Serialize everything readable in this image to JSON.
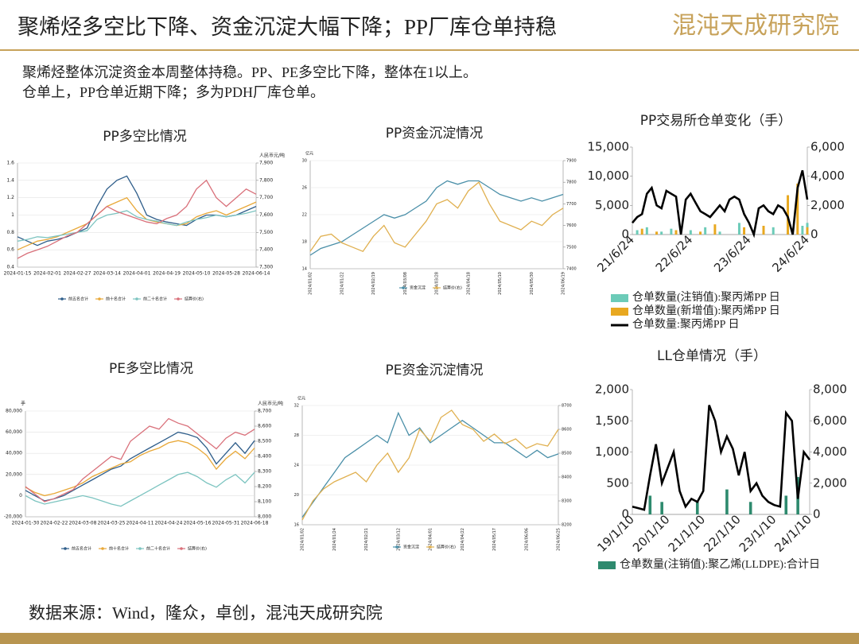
{
  "header": {
    "title": "聚烯烃多空比下降、资金沉淀大幅下降；PP厂库仓单持稳",
    "brand": "混沌天成研究院"
  },
  "summary": [
    "聚烯烃整体沉淀资金本周整体持稳。PP、PE多空比下降，整体在1以上。",
    "仓单上，PP仓单近期下降；多为PDH厂库仓单。"
  ],
  "source": "数据来源：Wind，隆众，卓创，混沌天成研究院",
  "chart_data": [
    {
      "type": "line",
      "title": "PP多空比情况",
      "y2label": "人民币元/吨",
      "categories": [
        "2024-01-15",
        null,
        null,
        "2024-02-01",
        null,
        null,
        "2024-02-27",
        null,
        null,
        "2024-03-14",
        null,
        null,
        "2024-04-01",
        null,
        null,
        "2024-04-19",
        null,
        null,
        "2024-05-10",
        null,
        null,
        "2024-05-28",
        null,
        null,
        "2024-06-14"
      ],
      "ylim": [
        0.4,
        1.6
      ],
      "yticks": [
        0.4,
        0.6,
        0.8,
        1,
        1.2,
        1.4,
        1.6
      ],
      "y2lim": [
        7300,
        7900
      ],
      "y2ticks": [
        {
          "value": 7300,
          "label": "7,300"
        },
        {
          "value": 7400,
          "label": "7,400"
        },
        {
          "value": 7500,
          "label": "7,500"
        },
        {
          "value": 7600,
          "label": "7,600"
        },
        {
          "value": 7700,
          "label": "7,700"
        },
        {
          "value": 7800,
          "label": "7,800"
        },
        {
          "value": 7900,
          "label": "7,900"
        }
      ],
      "grid": true,
      "series": [
        {
          "name": "前五名合计",
          "color": "#2e5d8a",
          "values": [
            0.75,
            0.7,
            0.65,
            0.7,
            0.72,
            0.75,
            0.8,
            0.85,
            1.1,
            1.3,
            1.4,
            1.45,
            1.25,
            1.0,
            0.95,
            0.92,
            0.9,
            0.88,
            0.95,
            1.0,
            1.0,
            0.98,
            1.0,
            1.05,
            1.1
          ]
        },
        {
          "name": "前十名合计",
          "color": "#e8a838",
          "values": [
            0.6,
            0.65,
            0.7,
            0.72,
            0.75,
            0.8,
            0.85,
            0.9,
            1.0,
            1.1,
            1.15,
            1.2,
            1.05,
            0.95,
            0.92,
            0.9,
            0.88,
            0.9,
            0.98,
            1.02,
            1.05,
            1.0,
            1.05,
            1.1,
            1.15
          ]
        },
        {
          "name": "前二十名合计",
          "color": "#7cc4c0",
          "values": [
            0.7,
            0.72,
            0.75,
            0.74,
            0.76,
            0.78,
            0.8,
            0.82,
            0.95,
            1.0,
            1.02,
            1.05,
            0.98,
            0.95,
            0.93,
            0.9,
            0.88,
            0.92,
            0.95,
            0.97,
            1.0,
            0.98,
            1.0,
            1.02,
            1.05
          ]
        },
        {
          "name": "结算价(右)",
          "color": "#d9707a",
          "axis": "y2",
          "values": [
            7350,
            7380,
            7400,
            7420,
            7450,
            7480,
            7500,
            7550,
            7600,
            7650,
            7620,
            7600,
            7580,
            7560,
            7550,
            7580,
            7600,
            7650,
            7750,
            7800,
            7700,
            7650,
            7700,
            7750,
            7720
          ]
        }
      ]
    },
    {
      "type": "line",
      "title": "PP资金沉淀情况",
      "ylabel": "亿元",
      "categories": [
        "2024/01/02",
        null,
        null,
        "2024/01/22",
        null,
        null,
        "2024/02/19",
        null,
        null,
        "2024/03/08",
        null,
        null,
        "2024/03/28",
        null,
        null,
        "2024/04/18",
        null,
        null,
        "2024/05/10",
        null,
        null,
        "2024/05/30",
        null,
        null,
        "2024/06/19"
      ],
      "ylim": [
        14,
        30
      ],
      "yticks": [
        14,
        18,
        22,
        26,
        30
      ],
      "y2lim": [
        7400,
        7900
      ],
      "y2ticks": [
        7400,
        7500,
        7600,
        7700,
        7800,
        7900
      ],
      "grid": true,
      "series": [
        {
          "name": "资金沉淀",
          "color": "#4a8fa8",
          "values": [
            16,
            17,
            17.5,
            18,
            19,
            20,
            21,
            22,
            21.5,
            22,
            23,
            24,
            26,
            27,
            26.5,
            27,
            27,
            26,
            25,
            24.5,
            24,
            24.5,
            24,
            24.5,
            25
          ]
        },
        {
          "name": "结算价(右)",
          "color": "#e0b050",
          "axis": "y2",
          "values": [
            7480,
            7550,
            7560,
            7520,
            7500,
            7480,
            7550,
            7600,
            7520,
            7500,
            7560,
            7620,
            7700,
            7720,
            7680,
            7760,
            7800,
            7700,
            7620,
            7600,
            7580,
            7620,
            7600,
            7650,
            7680
          ]
        }
      ]
    },
    {
      "type": "line",
      "title": "PE多空比情况",
      "ylabel": "手",
      "y2label": "人民币元/吨",
      "categories": [
        "2024-01-30",
        null,
        null,
        "2024-02-22",
        null,
        null,
        "2024-03-08",
        null,
        null,
        "2024-03-25",
        null,
        null,
        "2024-04-11",
        null,
        null,
        "2024-04-24",
        null,
        null,
        "2024-05-16",
        null,
        null,
        "2024-05-31",
        null,
        null,
        "2024-06-18"
      ],
      "ylim": [
        -20000,
        80000
      ],
      "yticks": [
        {
          "value": -20000,
          "label": "-20,000"
        },
        {
          "value": 0,
          "label": "0"
        },
        {
          "value": 20000,
          "label": "20,000"
        },
        {
          "value": 40000,
          "label": "40,000"
        },
        {
          "value": 60000,
          "label": "60,000"
        },
        {
          "value": 80000,
          "label": "80,000"
        }
      ],
      "y2lim": [
        8000,
        8700
      ],
      "y2ticks": [
        {
          "value": 8000,
          "label": "8,000"
        },
        {
          "value": 8100,
          "label": "8,100"
        },
        {
          "value": 8200,
          "label": "8,200"
        },
        {
          "value": 8300,
          "label": "8,300"
        },
        {
          "value": 8400,
          "label": "8,400"
        },
        {
          "value": 8500,
          "label": "8,500"
        },
        {
          "value": 8600,
          "label": "8,600"
        },
        {
          "value": 8700,
          "label": "8,700"
        }
      ],
      "grid": true,
      "series": [
        {
          "name": "前五名合计",
          "color": "#2e5d8a",
          "values": [
            5000,
            0,
            -5000,
            -3000,
            0,
            5000,
            10000,
            15000,
            20000,
            25000,
            28000,
            35000,
            40000,
            45000,
            50000,
            55000,
            60000,
            58000,
            55000,
            45000,
            30000,
            40000,
            50000,
            40000,
            52000
          ]
        },
        {
          "name": "前十名合计",
          "color": "#e8a838",
          "values": [
            8000,
            3000,
            0,
            2000,
            5000,
            8000,
            12000,
            18000,
            22000,
            26000,
            30000,
            32000,
            38000,
            42000,
            45000,
            50000,
            52000,
            50000,
            45000,
            38000,
            25000,
            35000,
            42000,
            35000,
            45000
          ]
        },
        {
          "name": "前二十名合计",
          "color": "#7cc4c0",
          "values": [
            0,
            -5000,
            -8000,
            -6000,
            -4000,
            -2000,
            0,
            -2000,
            -5000,
            -8000,
            -10000,
            -5000,
            0,
            5000,
            10000,
            15000,
            20000,
            22000,
            18000,
            12000,
            8000,
            15000,
            20000,
            12000,
            22000
          ]
        },
        {
          "name": "结算价(右)",
          "color": "#d9707a",
          "axis": "y2",
          "values": [
            8200,
            8150,
            8100,
            8120,
            8150,
            8180,
            8250,
            8300,
            8350,
            8400,
            8380,
            8500,
            8550,
            8600,
            8580,
            8650,
            8620,
            8600,
            8550,
            8500,
            8450,
            8520,
            8560,
            8540,
            8580
          ]
        }
      ]
    },
    {
      "type": "line",
      "title": "PE资金沉淀情况",
      "ylabel": "亿元",
      "categories": [
        "2024/01/02",
        null,
        null,
        "2024/01/24",
        null,
        null,
        "2024/02/21",
        null,
        null,
        "2024/03/12",
        null,
        null,
        "2024/04/01",
        null,
        null,
        "2024/04/22",
        null,
        null,
        "2024/05/17",
        null,
        null,
        "2024/06/06",
        null,
        null,
        "2024/06/25"
      ],
      "ylim": [
        16,
        32
      ],
      "yticks": [
        16,
        20,
        24,
        28,
        32
      ],
      "y2lim": [
        8200,
        8700
      ],
      "y2ticks": [
        8200,
        8300,
        8400,
        8500,
        8600,
        8700
      ],
      "grid": true,
      "series": [
        {
          "name": "资金沉淀",
          "color": "#4a8fa8",
          "values": [
            17,
            19,
            21,
            23,
            25,
            26,
            27,
            28,
            27,
            31,
            28,
            29,
            27,
            28,
            29,
            30,
            29,
            28,
            27,
            27,
            26,
            25,
            26,
            25,
            25.5
          ]
        },
        {
          "name": "结算价(右)",
          "color": "#e0b050",
          "axis": "y2",
          "values": [
            8220,
            8300,
            8350,
            8380,
            8400,
            8420,
            8380,
            8450,
            8500,
            8420,
            8480,
            8600,
            8550,
            8650,
            8680,
            8620,
            8600,
            8550,
            8580,
            8540,
            8560,
            8520,
            8540,
            8530,
            8600
          ]
        }
      ]
    },
    {
      "type": "combo",
      "title": "PP交易所仓单变化（手）",
      "categories": [
        "21/6/24",
        null,
        null,
        null,
        null,
        null,
        null,
        null,
        null,
        null,
        null,
        null,
        "22/6/24",
        null,
        null,
        null,
        null,
        null,
        null,
        null,
        null,
        null,
        null,
        null,
        "23/6/24",
        null,
        null,
        null,
        null,
        null,
        null,
        null,
        null,
        null,
        null,
        null,
        "24/6/24"
      ],
      "ylim": [
        0,
        15000
      ],
      "yticks": [
        0,
        {
          "value": 5000,
          "label": "5,000"
        },
        {
          "value": 10000,
          "label": "10,000"
        },
        {
          "value": 15000,
          "label": "15,000"
        }
      ],
      "y2lim": [
        0,
        6000
      ],
      "y2ticks": [
        0,
        {
          "value": 2000,
          "label": "2,000"
        },
        {
          "value": 4000,
          "label": "4,000"
        },
        {
          "value": 6000,
          "label": "6,000"
        }
      ],
      "grid": false,
      "series": [
        {
          "name": "仓单数量(注销值):聚丙烯PP 日",
          "color": "#6ccbb8",
          "kind": "bar",
          "axis": "y2",
          "values": [
            0,
            300,
            0,
            500,
            0,
            0,
            200,
            0,
            400,
            0,
            0,
            0,
            300,
            0,
            0,
            500,
            0,
            0,
            200,
            0,
            0,
            0,
            800,
            0,
            0,
            300,
            0,
            0,
            0,
            500,
            0,
            0,
            1000,
            0,
            0,
            600,
            800
          ]
        },
        {
          "name": "仓单数量(新增值):聚丙烯PP 日",
          "color": "#e8a820",
          "kind": "bar",
          "axis": "y2",
          "values": [
            0,
            0,
            400,
            0,
            0,
            200,
            0,
            0,
            0,
            300,
            0,
            0,
            0,
            0,
            200,
            0,
            0,
            700,
            0,
            0,
            0,
            0,
            0,
            500,
            0,
            0,
            0,
            600,
            0,
            0,
            0,
            0,
            2700,
            0,
            3500,
            0,
            500
          ]
        },
        {
          "name": "仓单数量:聚丙烯PP 日",
          "color": "#000000",
          "kind": "line",
          "values": [
            2000,
            3000,
            3500,
            7000,
            8000,
            5000,
            4500,
            7500,
            7000,
            6500,
            0,
            6000,
            7000,
            5500,
            4000,
            3500,
            3000,
            4000,
            5000,
            4000,
            6000,
            6500,
            6000,
            3500,
            2000,
            0,
            4500,
            5000,
            4000,
            3500,
            5000,
            4500,
            3000,
            0,
            8000,
            11000,
            6000
          ]
        }
      ]
    },
    {
      "type": "combo",
      "title": "LL仓单情况（手）",
      "categories": [
        "19/1/10",
        null,
        null,
        null,
        null,
        null,
        "20/1/10",
        null,
        null,
        null,
        null,
        null,
        "21/1/10",
        null,
        null,
        null,
        null,
        null,
        "22/1/10",
        null,
        null,
        null,
        null,
        null,
        "23/1/10",
        null,
        null,
        null,
        null,
        null,
        "24/1/10"
      ],
      "ylim": [
        0,
        2000
      ],
      "yticks": [
        0,
        500,
        {
          "value": 1000,
          "label": "1,000"
        },
        {
          "value": 1500,
          "label": "1,500"
        },
        {
          "value": 2000,
          "label": "2,000"
        }
      ],
      "y2lim": [
        0,
        8000
      ],
      "y2ticks": [
        0,
        {
          "value": 2000,
          "label": "2,000"
        },
        {
          "value": 4000,
          "label": "4,000"
        },
        {
          "value": 6000,
          "label": "6,000"
        },
        {
          "value": 8000,
          "label": "8,000"
        }
      ],
      "grid": false,
      "series": [
        {
          "name": "仓单数量(注销值):聚乙烯(LLDPE):合计日",
          "color": "#2e8a6e",
          "kind": "bar",
          "values": [
            0,
            0,
            0,
            300,
            0,
            200,
            0,
            0,
            0,
            0,
            0,
            200,
            0,
            0,
            0,
            0,
            400,
            0,
            0,
            0,
            200,
            0,
            0,
            0,
            0,
            0,
            300,
            0,
            600,
            0,
            0
          ]
        },
        {
          "color": "#000000",
          "kind": "line",
          "axis": "y2",
          "values": [
            500,
            400,
            300,
            2500,
            4500,
            2000,
            3000,
            4000,
            1500,
            500,
            1000,
            800,
            1500,
            7000,
            6000,
            4000,
            5000,
            4200,
            2500,
            4000,
            1500,
            2000,
            1200,
            800,
            600,
            500,
            6500,
            6000,
            1000,
            4000,
            3500
          ]
        }
      ]
    }
  ]
}
